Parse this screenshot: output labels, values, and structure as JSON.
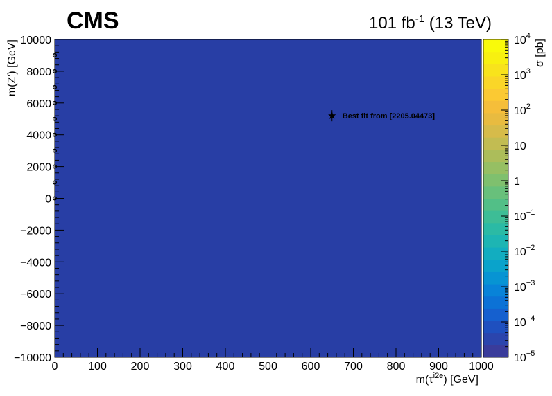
{
  "chart_data": {
    "type": "heatmap",
    "experiment": "CMS",
    "luminosity": {
      "prefix": "101 fb",
      "sup": "-1",
      "suffix": " (13 TeV)"
    },
    "xlabel": {
      "prefix": "m(τ",
      "sup": "i2e",
      "suffix": ") [GeV]"
    },
    "ylabel": "m(Z') [GeV]",
    "zlabel": "σ [pb]",
    "xlim": [
      0,
      1000
    ],
    "ylim": [
      -10000,
      10000
    ],
    "x_ticks": [
      0,
      100,
      200,
      300,
      400,
      500,
      600,
      700,
      800,
      900,
      1000
    ],
    "x_tick_labels": [
      "0",
      "100",
      "200",
      "300",
      "400",
      "500",
      "600",
      "700",
      "800",
      "900",
      "1000"
    ],
    "y_ticks": [
      -10000,
      -8000,
      -6000,
      -4000,
      -2000,
      0,
      2000,
      4000,
      6000,
      8000,
      10000
    ],
    "y_tick_labels": [
      "−10000",
      "−8000",
      "−6000",
      "−4000",
      "−2000",
      "0",
      "2000",
      "4000",
      "6000",
      "8000",
      "10000"
    ],
    "z_log": true,
    "zlim": [
      1e-05,
      10000
    ],
    "z_ticks": [
      {
        "value": 1e-05,
        "base": "10",
        "exp": "−5"
      },
      {
        "value": 0.0001,
        "base": "10",
        "exp": "−4"
      },
      {
        "value": 0.001,
        "base": "10",
        "exp": "−3"
      },
      {
        "value": 0.01,
        "base": "10",
        "exp": "−2"
      },
      {
        "value": 0.1,
        "base": "10",
        "exp": "−1"
      },
      {
        "value": 1,
        "base": "1",
        "exp": ""
      },
      {
        "value": 10,
        "base": "10",
        "exp": ""
      },
      {
        "value": 100,
        "base": "10",
        "exp": "2"
      },
      {
        "value": 1000,
        "base": "10",
        "exp": "3"
      },
      {
        "value": 10000,
        "base": "10",
        "exp": "4"
      }
    ],
    "colormap": [
      "#3a3c9b",
      "#2b45ad",
      "#1f50bf",
      "#1560cf",
      "#0c72d6",
      "#0883d8",
      "#0794d3",
      "#0aa3cb",
      "#12adc0",
      "#1db5b3",
      "#2bbaa5",
      "#3dbd96",
      "#52bf87",
      "#68c07b",
      "#7fc06e",
      "#96bf63",
      "#acbd5a",
      "#c2bc52",
      "#d6bb4a",
      "#e8bb40",
      "#f5be3a",
      "#fbc933",
      "#fad628",
      "#f8e31c",
      "#f8f010",
      "#f9fa0a"
    ],
    "fill_value": 1e-05,
    "fill_color": "#283ea5",
    "best_fit": {
      "x": 650,
      "y": 5200,
      "label": "Best fit from [2205.04473]"
    },
    "grid_points": [
      {
        "x": 0,
        "y": 0
      },
      {
        "x": 0,
        "y": 1000
      },
      {
        "x": 0,
        "y": 2000
      },
      {
        "x": 0,
        "y": 3000
      },
      {
        "x": 0,
        "y": 4000
      },
      {
        "x": 0,
        "y": 5000
      },
      {
        "x": 0,
        "y": 6000
      },
      {
        "x": 0,
        "y": 7000
      },
      {
        "x": 0,
        "y": 8000
      },
      {
        "x": 0,
        "y": 9000
      }
    ]
  }
}
